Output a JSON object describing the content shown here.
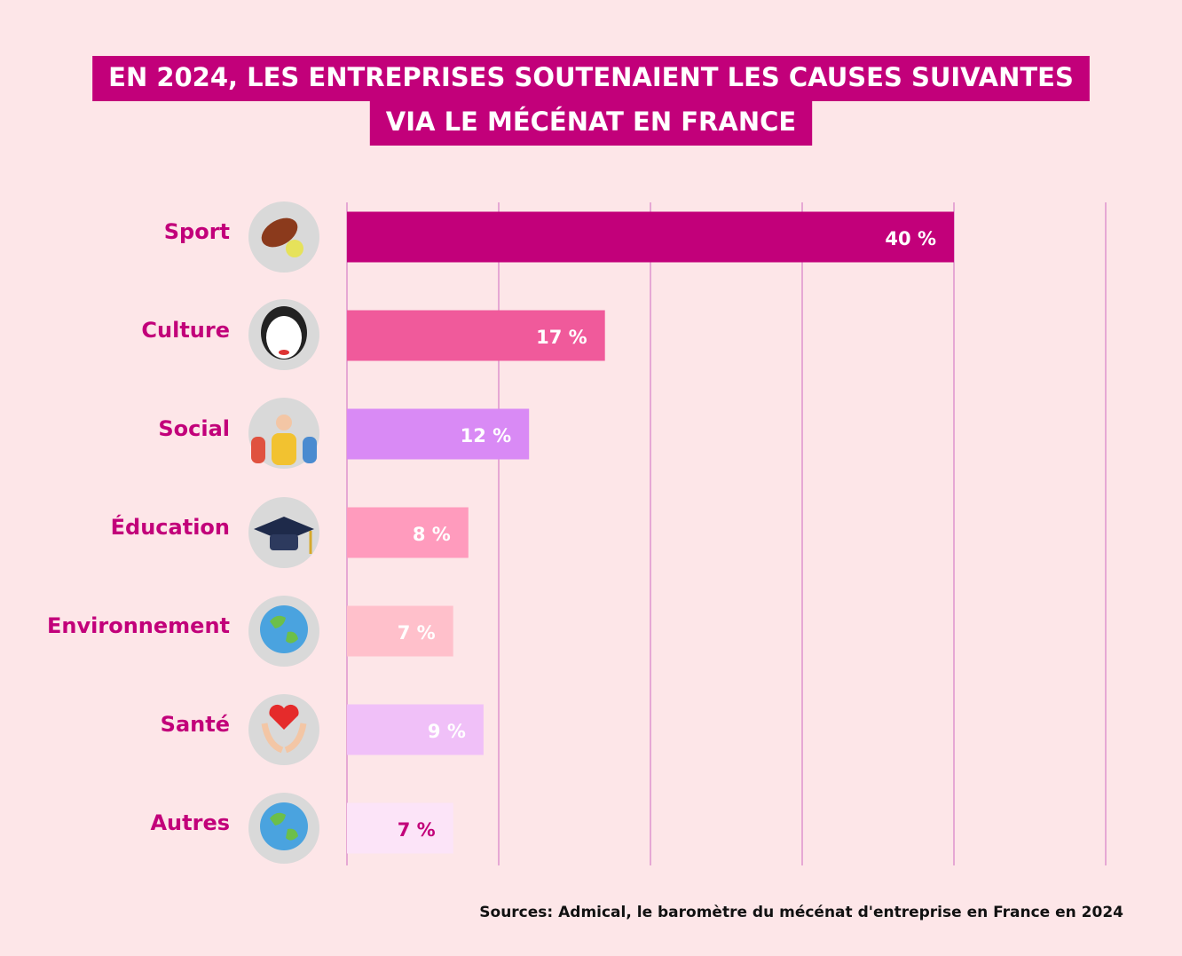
{
  "chart_data": {
    "type": "bar",
    "orientation": "horizontal",
    "title": [
      "EN 2024, LES ENTREPRISES SOUTENAIENT LES CAUSES SUIVANTES",
      "VIA LE MÉCÉNAT EN FRANCE"
    ],
    "categories": [
      "Sport",
      "Culture",
      "Social",
      "Éducation",
      "Environnement",
      "Santé",
      "Autres"
    ],
    "values": [
      40,
      17,
      12,
      8,
      7,
      9,
      7
    ],
    "value_labels": [
      "40 %",
      "17 %",
      "12 %",
      "8 %",
      "7 %",
      "9 %",
      "7 %"
    ],
    "colors": [
      "#c2007a",
      "#f05a9b",
      "#d98af5",
      "#ff9bbd",
      "#ffc0cb",
      "#f0c0f8",
      "#fce4f8"
    ],
    "label_colors": [
      "#ffffff",
      "#ffffff",
      "#ffffff",
      "#ffffff",
      "#ffffff",
      "#ffffff",
      "#c2007a"
    ],
    "xlim": [
      0,
      50
    ],
    "xticks": [
      0,
      10,
      20,
      30,
      40,
      50
    ],
    "grid": true,
    "source": "Sources: Admical, le baromètre du mécénat d'entreprise en France en 2024"
  }
}
